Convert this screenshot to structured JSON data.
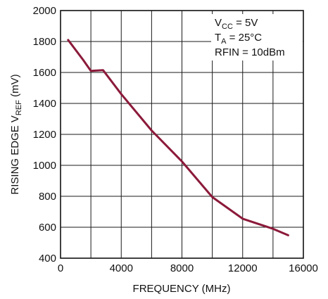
{
  "chart_data": {
    "type": "line",
    "xlabel": "FREQUENCY (MHz)",
    "ylabel": {
      "prefix": "RISING EDGE V",
      "subscript": "REF",
      "suffix": " (mV)"
    },
    "xlim": [
      0,
      16000
    ],
    "ylim": [
      400,
      2000
    ],
    "x_ticks": [
      0,
      4000,
      8000,
      12000,
      16000
    ],
    "x_tick_labels": [
      "0",
      "4000",
      "8000",
      "12000",
      "16000"
    ],
    "y_ticks": [
      400,
      600,
      800,
      1000,
      1200,
      1400,
      1600,
      1800,
      2000
    ],
    "y_tick_labels": [
      "400",
      "600",
      "800",
      "1000",
      "1200",
      "1400",
      "1600",
      "1800",
      "2000"
    ],
    "grid": true,
    "annotations": [
      {
        "main": "V",
        "sub": "CC",
        "rest": " = 5V"
      },
      {
        "main": "T",
        "sub": "A",
        "rest": " = 25°C"
      },
      {
        "main": "RFIN = 10dBm",
        "sub": "",
        "rest": ""
      }
    ],
    "series": [
      {
        "color": "#8b1a3a",
        "x": [
          500,
          1500,
          2000,
          2800,
          4000,
          6000,
          8000,
          10000,
          12000,
          14000,
          15000
        ],
        "y": [
          1810,
          1680,
          1610,
          1615,
          1460,
          1225,
          1025,
          795,
          655,
          590,
          548
        ]
      }
    ]
  }
}
